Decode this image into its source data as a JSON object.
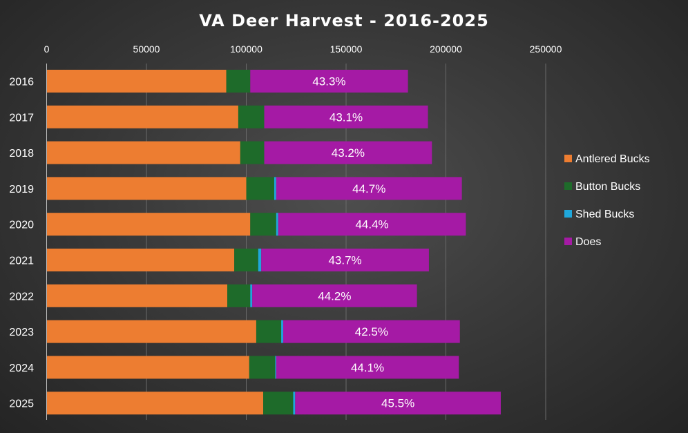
{
  "chart_data": {
    "type": "bar",
    "orientation": "horizontal",
    "stacked": true,
    "title": "VA Deer Harvest - 2016-2025",
    "categories": [
      "2016",
      "2017",
      "2018",
      "2019",
      "2020",
      "2021",
      "2022",
      "2023",
      "2024",
      "2025"
    ],
    "series": [
      {
        "name": "Antlered Bucks",
        "color": "#ED7D31",
        "values": [
          90000,
          96000,
          97000,
          100000,
          102000,
          94000,
          90500,
          105000,
          101500,
          108500
        ]
      },
      {
        "name": "Button Bucks",
        "color": "#1E6B2A",
        "values": [
          12000,
          13000,
          12000,
          14000,
          13000,
          12000,
          11500,
          12500,
          13000,
          15000
        ]
      },
      {
        "name": "Shed Bucks",
        "color": "#1FA7DB",
        "values": [
          0,
          0,
          0,
          1000,
          1000,
          1500,
          1000,
          1000,
          500,
          1000
        ]
      },
      {
        "name": "Does",
        "color": "#A51AA5",
        "values": [
          79000,
          82000,
          84000,
          93000,
          94000,
          84000,
          82500,
          88500,
          91500,
          103000
        ]
      }
    ],
    "data_labels": [
      "43.3%",
      "43.1%",
      "43.2%",
      "44.7%",
      "44.4%",
      "43.7%",
      "44.2%",
      "42.5%",
      "44.1%",
      "45.5%"
    ],
    "xlim": [
      0,
      250000
    ],
    "xticks": [
      "0",
      "50000",
      "100000",
      "150000",
      "200000",
      "250000"
    ],
    "x_axis_position": "top",
    "grid": true,
    "legend_position": "right"
  }
}
